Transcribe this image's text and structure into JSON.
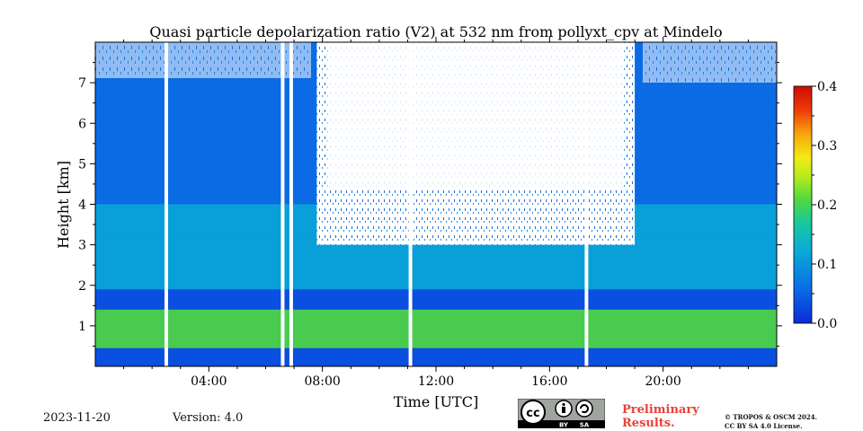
{
  "chart_data": {
    "type": "heatmap",
    "title": "Quasi particle depolarization ratio (V2) at 532 nm from pollyxt_cpv at Mindelo",
    "xlabel": "Time [UTC]",
    "ylabel": "Height [km]",
    "x_ticks": [
      "04:00",
      "08:00",
      "12:00",
      "16:00",
      "20:00"
    ],
    "x_tick_hours": [
      4,
      8,
      12,
      16,
      20
    ],
    "xlim_hours": [
      0,
      24
    ],
    "y_ticks": [
      "1",
      "2",
      "3",
      "4",
      "5",
      "6",
      "7"
    ],
    "y_tick_values": [
      1,
      2,
      3,
      4,
      5,
      6,
      7
    ],
    "ylim_km": [
      0,
      8
    ],
    "colorbar": {
      "ticks": [
        "0.0",
        "0.1",
        "0.2",
        "0.3",
        "0.4"
      ],
      "tick_values": [
        0.0,
        0.1,
        0.2,
        0.3,
        0.4
      ],
      "range": [
        0.0,
        0.4
      ],
      "colormap": [
        "#0b2bd6",
        "#0a6ee6",
        "#09a8d8",
        "#19c7a0",
        "#4fd83f",
        "#b8ec1a",
        "#f3ea14",
        "#f7a40c",
        "#ee3a08",
        "#cc0d03"
      ]
    },
    "data_gaps_hours": [
      2.5,
      6.6,
      6.9,
      11.1,
      17.3
    ],
    "cloud_screened_region": {
      "start_hour": 7.8,
      "end_hour": 19.0,
      "above_km": 3.0
    },
    "layers": [
      {
        "start_hour": 0,
        "end_hour": 24,
        "base_km": 0.45,
        "top_km": 1.4,
        "value": 0.18
      },
      {
        "start_hour": 0,
        "end_hour": 24,
        "base_km": 1.9,
        "top_km": 3.2,
        "value": 0.11
      },
      {
        "start_hour": 0,
        "end_hour": 24,
        "base_km": 3.2,
        "top_km": 4.0,
        "value": 0.07
      },
      {
        "start_hour": 0,
        "end_hour": 24,
        "base_km": 4.0,
        "top_km": 8.0,
        "value": 0.04
      }
    ]
  },
  "footer": {
    "date": "2023-11-20",
    "version": "Version: 4.0",
    "preliminary_line1": "Preliminary",
    "preliminary_line2": "Results.",
    "copyright_line1": "© TROPOS & OSCM 2024.",
    "copyright_line2": "CC BY SA 4.0 License.",
    "cc_label_by": "BY",
    "cc_label_sa": "SA"
  }
}
